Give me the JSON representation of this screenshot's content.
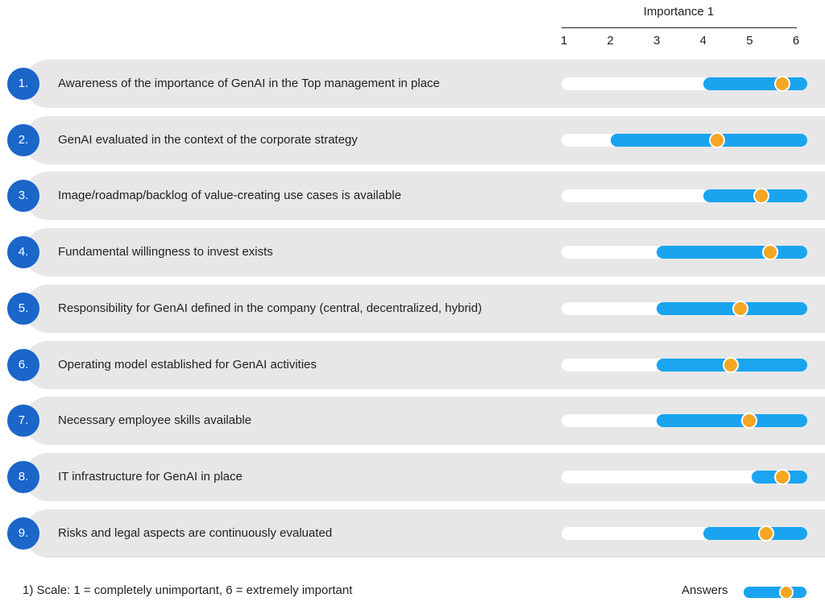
{
  "chart_data": {
    "type": "range-dot",
    "axis_title": "Importance 1",
    "scale_ticks": [
      "1",
      "2",
      "3",
      "4",
      "5",
      "6"
    ],
    "xlim": [
      1,
      6.25
    ],
    "items": [
      {
        "number": "1.",
        "label": "Awareness of the importance of GenAI  in the Top management in place",
        "min": 4.0,
        "max": 6.25,
        "answer": 5.7
      },
      {
        "number": "2.",
        "label": "GenAI evaluated in the context of the  corporate strategy",
        "min": 2.0,
        "max": 6.25,
        "answer": 4.3
      },
      {
        "number": "3.",
        "label": "Image/roadmap/backlog of value-creating use cases is available",
        "min": 4.0,
        "max": 6.25,
        "answer": 5.25
      },
      {
        "number": "4.",
        "label": "Fundamental willingness to invest exists",
        "min": 3.0,
        "max": 6.25,
        "answer": 5.45
      },
      {
        "number": "5.",
        "label": "Responsibility for GenAI defined in the  company (central, decentralized, hybrid)",
        "min": 3.0,
        "max": 6.25,
        "answer": 4.8
      },
      {
        "number": "6.",
        "label": "Operating model established for GenAI activities",
        "min": 3.0,
        "max": 6.25,
        "answer": 4.6
      },
      {
        "number": "7.",
        "label": "Necessary employee skills available",
        "min": 3.0,
        "max": 6.25,
        "answer": 5.0
      },
      {
        "number": "8.",
        "label": "IT infrastructure for GenAI in place",
        "min": 5.05,
        "max": 6.25,
        "answer": 5.7
      },
      {
        "number": "9.",
        "label": "Risks and legal aspects are continuously evaluated",
        "min": 4.0,
        "max": 6.25,
        "answer": 5.35
      }
    ],
    "footnote": "1) Scale: 1 = completely unimportant, 6 = extremely important",
    "legend": "Answers",
    "colors": {
      "range": "#1aa4ef",
      "answer": "#f5a623",
      "badge": "#1a66c9",
      "row": "#e7e7e7"
    }
  }
}
